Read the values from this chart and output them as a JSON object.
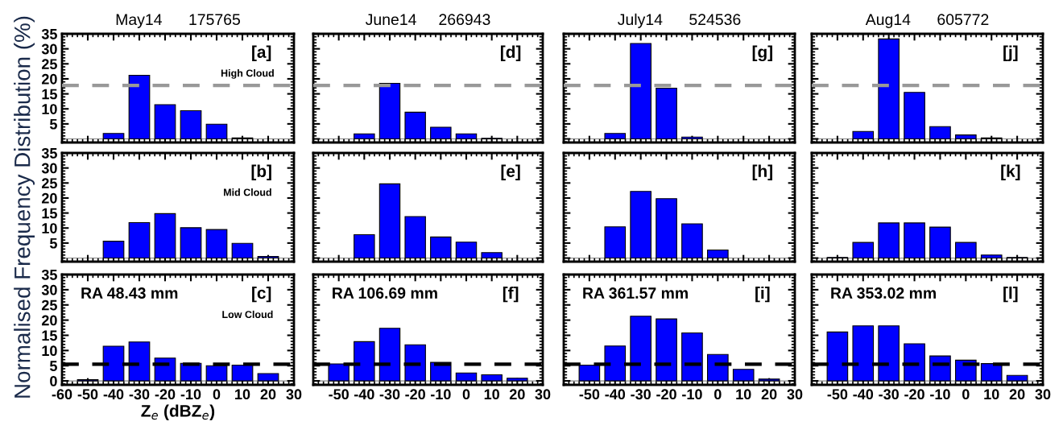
{
  "chart_data": [
    {
      "type": "bar",
      "title": "May14      175765",
      "x": [
        -40,
        -30,
        -20,
        -10,
        0,
        10
      ],
      "color": "#0000ff",
      "values": [
        1.8,
        21.2,
        11.4,
        9.4,
        4.9,
        0.3
      ],
      "xlim": [
        -60,
        30
      ],
      "ylim": [
        -1.2,
        35
      ],
      "yticks": [
        5,
        10,
        15,
        20,
        25,
        30,
        35
      ],
      "tick_labels": "y",
      "ref_lines": [
        {
          "axis": "y",
          "value": 0,
          "color": "#888888",
          "line_style": "solid"
        },
        {
          "axis": "y",
          "value": 17.8,
          "color": "#999999",
          "line_style": "dashed"
        }
      ],
      "annotations": [
        "[a]",
        "High Cloud"
      ]
    },
    {
      "type": "bar",
      "ylabel": "Normalised Frequency Distribution (%)",
      "x": [
        -40,
        -30,
        -20,
        -10,
        0,
        10,
        20
      ],
      "color": "#0000ff",
      "values": [
        5.6,
        11.8,
        14.8,
        10.1,
        9.5,
        4.9,
        0.5
      ],
      "xlim": [
        -60,
        30
      ],
      "ylim": [
        -1.2,
        35
      ],
      "yticks": [
        5,
        10,
        15,
        20,
        25,
        30,
        35
      ],
      "tick_labels": "y",
      "ref_lines": [
        {
          "axis": "y",
          "value": 0,
          "color": "#888888",
          "line_style": "solid"
        }
      ],
      "annotations": [
        "[b]",
        "Mid Cloud"
      ]
    },
    {
      "type": "bar",
      "xlabel": "Z$_{e}$ (dBZ$_{e}$)",
      "x": [
        -50,
        -40,
        -30,
        -20,
        -10,
        0,
        10,
        20
      ],
      "color": "#0000ff",
      "values": [
        0.4,
        11.4,
        12.8,
        7.5,
        5.8,
        5.0,
        5.2,
        2.4
      ],
      "xlim": [
        -60,
        30
      ],
      "ylim": [
        -1.3,
        35
      ],
      "xticks": [
        -60,
        -50,
        -40,
        -30,
        -20,
        -10,
        0,
        10,
        20,
        30
      ],
      "yticks": [
        0,
        5,
        10,
        15,
        20,
        25,
        30,
        35
      ],
      "ref_lines": [
        {
          "axis": "y",
          "value": 0,
          "color": "#888888",
          "line_style": "solid"
        },
        {
          "axis": "y",
          "value": 5.5,
          "color": "#000000",
          "line_style": "dashed"
        }
      ],
      "annotations": [
        "[c]",
        "RA 48.43 mm",
        "Low Cloud"
      ]
    },
    {
      "type": "bar",
      "title": "June14     266943",
      "x": [
        -40,
        -30,
        -20,
        -10,
        0,
        10
      ],
      "color": "#0000ff",
      "values": [
        1.7,
        18.5,
        8.9,
        3.9,
        1.7,
        0.2
      ],
      "xlim": [
        -60,
        30
      ],
      "ylim": [
        -1.2,
        35
      ],
      "tick_labels": false,
      "ref_lines": [
        {
          "axis": "y",
          "value": 0,
          "color": "#888888",
          "line_style": "solid"
        },
        {
          "axis": "y",
          "value": 17.8,
          "color": "#999999",
          "line_style": "dashed"
        }
      ],
      "annotations": [
        "[d]"
      ]
    },
    {
      "type": "bar",
      "x": [
        -40,
        -30,
        -20,
        -10,
        0,
        10
      ],
      "color": "#0000ff",
      "values": [
        7.8,
        24.7,
        13.8,
        7.0,
        5.3,
        1.8
      ],
      "xlim": [
        -60,
        30
      ],
      "ylim": [
        -1.2,
        35
      ],
      "tick_labels": false,
      "ref_lines": [
        {
          "axis": "y",
          "value": 0,
          "color": "#888888",
          "line_style": "solid"
        }
      ],
      "annotations": [
        "[e]"
      ]
    },
    {
      "type": "bar",
      "x": [
        -50,
        -40,
        -30,
        -20,
        -10,
        0,
        10,
        20
      ],
      "color": "#0000ff",
      "values": [
        5.6,
        12.9,
        17.3,
        11.9,
        6.1,
        2.6,
        2.0,
        0.9
      ],
      "xlim": [
        -60,
        30
      ],
      "ylim": [
        -1.3,
        35
      ],
      "xticks": [
        -50,
        -40,
        -30,
        -20,
        -10,
        0,
        10,
        20,
        30
      ],
      "tick_labels": "x",
      "ref_lines": [
        {
          "axis": "y",
          "value": 0,
          "color": "#888888",
          "line_style": "solid"
        },
        {
          "axis": "y",
          "value": 5.5,
          "color": "#000000",
          "line_style": "dashed"
        }
      ],
      "annotations": [
        "[f]",
        "RA 106.69 mm"
      ]
    },
    {
      "type": "bar",
      "title": "July14      524536",
      "x": [
        -40,
        -30,
        -20,
        -10
      ],
      "color": "#0000ff",
      "values": [
        1.8,
        31.8,
        16.9,
        0.6
      ],
      "xlim": [
        -60,
        30
      ],
      "ylim": [
        -1.2,
        35
      ],
      "tick_labels": false,
      "ref_lines": [
        {
          "axis": "y",
          "value": 0,
          "color": "#888888",
          "line_style": "solid"
        },
        {
          "axis": "y",
          "value": 17.8,
          "color": "#999999",
          "line_style": "dashed"
        }
      ],
      "annotations": [
        "[g]"
      ]
    },
    {
      "type": "bar",
      "x": [
        -40,
        -30,
        -20,
        -10,
        0
      ],
      "color": "#0000ff",
      "values": [
        10.4,
        22.2,
        19.8,
        11.4,
        2.7
      ],
      "xlim": [
        -60,
        30
      ],
      "ylim": [
        -1.2,
        35
      ],
      "tick_labels": false,
      "ref_lines": [
        {
          "axis": "y",
          "value": 0,
          "color": "#888888",
          "line_style": "solid"
        }
      ],
      "annotations": [
        "[h]"
      ]
    },
    {
      "type": "bar",
      "x": [
        -50,
        -40,
        -30,
        -20,
        -10,
        0,
        10,
        20
      ],
      "color": "#0000ff",
      "values": [
        5.2,
        11.5,
        21.3,
        20.4,
        15.8,
        8.7,
        3.8,
        0.6
      ],
      "xlim": [
        -60,
        30
      ],
      "ylim": [
        -1.3,
        35
      ],
      "xticks": [
        -50,
        -40,
        -30,
        -20,
        -10,
        0,
        10,
        20,
        30
      ],
      "tick_labels": "x",
      "ref_lines": [
        {
          "axis": "y",
          "value": 0,
          "color": "#888888",
          "line_style": "solid"
        },
        {
          "axis": "y",
          "value": 5.5,
          "color": "#000000",
          "line_style": "dashed"
        }
      ],
      "annotations": [
        "[i]",
        "RA 361.57 mm"
      ]
    },
    {
      "type": "bar",
      "title": "Aug14      605772",
      "x": [
        -40,
        -30,
        -20,
        -10,
        0,
        10
      ],
      "color": "#0000ff",
      "values": [
        2.5,
        33.3,
        15.5,
        4.1,
        1.3,
        0.3
      ],
      "xlim": [
        -60,
        30
      ],
      "ylim": [
        -1.2,
        35
      ],
      "tick_labels": false,
      "ref_lines": [
        {
          "axis": "y",
          "value": 0,
          "color": "#888888",
          "line_style": "solid"
        },
        {
          "axis": "y",
          "value": 17.8,
          "color": "#999999",
          "line_style": "dashed"
        }
      ],
      "annotations": [
        "[j]"
      ]
    },
    {
      "type": "bar",
      "x": [
        -50,
        -40,
        -30,
        -20,
        -10,
        0,
        10,
        20
      ],
      "color": "#0000ff",
      "values": [
        0.2,
        5.2,
        11.7,
        11.7,
        10.3,
        5.2,
        1.0,
        0.2
      ],
      "xlim": [
        -60,
        30
      ],
      "ylim": [
        -1.2,
        35
      ],
      "tick_labels": false,
      "ref_lines": [
        {
          "axis": "y",
          "value": 0,
          "color": "#888888",
          "line_style": "solid"
        }
      ],
      "annotations": [
        "[k]"
      ]
    },
    {
      "type": "bar",
      "x": [
        -50,
        -40,
        -30,
        -20,
        -10,
        0,
        10,
        20
      ],
      "color": "#0000ff",
      "values": [
        16.1,
        18.1,
        18.1,
        12.2,
        8.2,
        6.8,
        5.7,
        1.8
      ],
      "xlim": [
        -60,
        30
      ],
      "ylim": [
        -1.3,
        35
      ],
      "xticks": [
        -50,
        -40,
        -30,
        -20,
        -10,
        0,
        10,
        20,
        30
      ],
      "tick_labels": "x",
      "ref_lines": [
        {
          "axis": "y",
          "value": 0,
          "color": "#888888",
          "line_style": "solid"
        },
        {
          "axis": "y",
          "value": 5.5,
          "color": "#000000",
          "line_style": "dashed"
        }
      ],
      "annotations": [
        "[l]",
        "RA 353.02 mm"
      ]
    }
  ]
}
